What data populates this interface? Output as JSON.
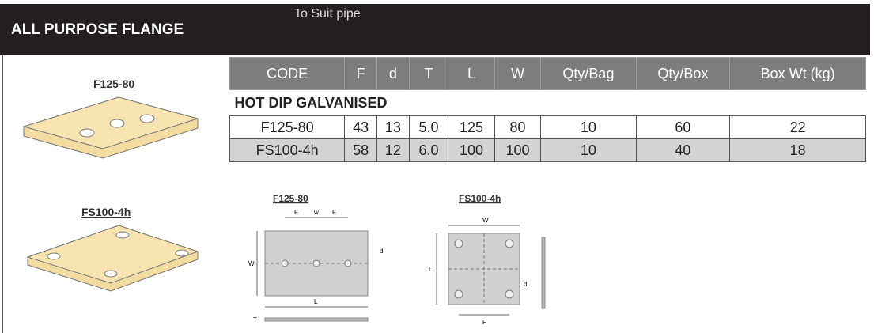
{
  "header": {
    "title": "ALL PURPOSE FLANGE",
    "subtitle": "To Suit pipe"
  },
  "products": [
    {
      "label": "F125-80"
    },
    {
      "label": "FS100-4h"
    }
  ],
  "table": {
    "columns": [
      "CODE",
      "F",
      "d",
      "T",
      "L",
      "W",
      "Qty/Bag",
      "Qty/Box",
      "Box Wt (kg)"
    ],
    "section": "HOT DIP GALVANISED",
    "rows": [
      [
        "F125-80",
        "43",
        "13",
        "5.0",
        "125",
        "80",
        "10",
        "60",
        "22"
      ],
      [
        "FS100-4h",
        "58",
        "12",
        "6.0",
        "100",
        "100",
        "10",
        "40",
        "18"
      ]
    ]
  },
  "diagrams": [
    {
      "label": "F125-80",
      "dims": [
        "F",
        "w",
        "F",
        "W",
        "d",
        "L",
        "T"
      ]
    },
    {
      "label": "FS100-4h",
      "dims": [
        "W",
        "L",
        "d",
        "F"
      ]
    }
  ]
}
